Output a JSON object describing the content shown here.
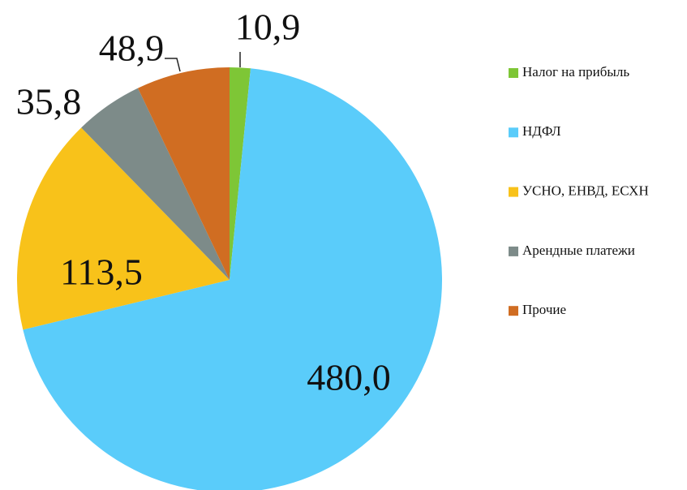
{
  "chart_data": {
    "type": "pie",
    "categories": [
      "Налог на прибыль",
      "НДФЛ",
      "УСНО, ЕНВД, ЕСХН",
      "Арендные платежи",
      "Прочие"
    ],
    "values": [
      10.9,
      480.0,
      113.5,
      35.8,
      48.9
    ],
    "value_labels": [
      "10,9",
      "480,0",
      "113,5",
      "35,8",
      "48,9"
    ],
    "colors": [
      "#7ec636",
      "#5accfa",
      "#f8c21a",
      "#7d8b89",
      "#d06d22"
    ],
    "legend": "right"
  }
}
